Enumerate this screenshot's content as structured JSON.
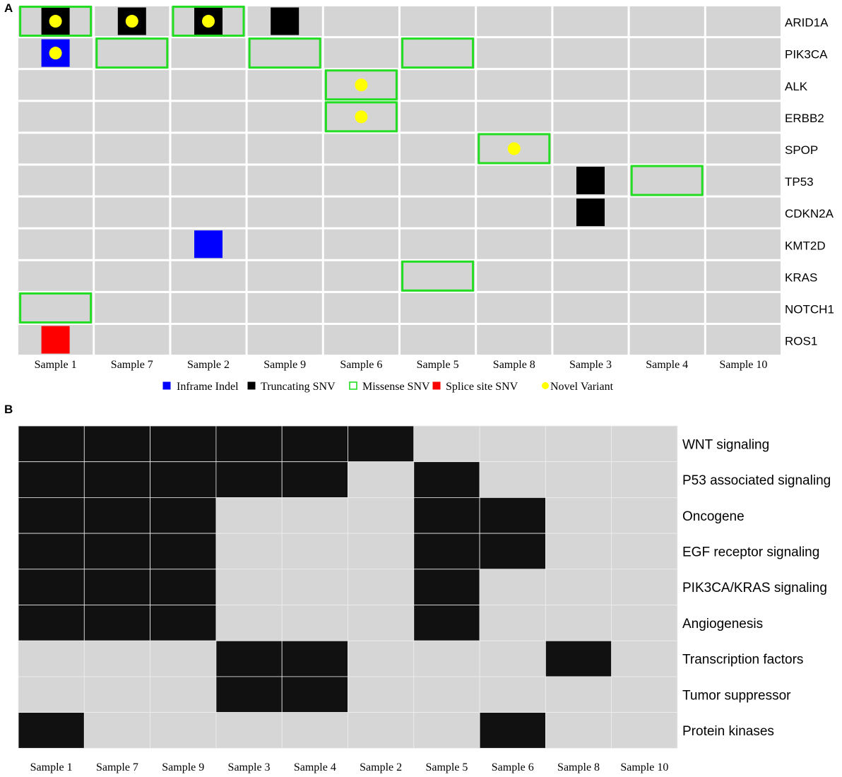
{
  "panel_a_label": "A",
  "panel_b_label": "B",
  "colors": {
    "background_cell": "#d4d4d4",
    "inframe_indel": "#0000ff",
    "truncating_snv": "#000000",
    "missense_snv": "#22dd22",
    "splice_site_snv": "#ff0000",
    "novel_variant": "#ffff00",
    "pathway_hit": "#111111",
    "pathway_empty": "#d6d6d6"
  },
  "legend": [
    {
      "key": "inframe_indel",
      "label": "Inframe Indel",
      "shape": "filled-square"
    },
    {
      "key": "truncating_snv",
      "label": "Truncating SNV",
      "shape": "filled-square"
    },
    {
      "key": "missense_snv",
      "label": "Missense SNV",
      "shape": "outline-square"
    },
    {
      "key": "splice_site_snv",
      "label": "Splice site SNV",
      "shape": "filled-square"
    },
    {
      "key": "novel_variant",
      "label": "Novel Variant",
      "shape": "dot"
    }
  ],
  "chart_data": [
    {
      "type": "heatmap",
      "panel": "A",
      "samples": [
        "Sample 1",
        "Sample 7",
        "Sample 2",
        "Sample 9",
        "Sample 6",
        "Sample 5",
        "Sample 8",
        "Sample 3",
        "Sample 4",
        "Sample 10"
      ],
      "genes": [
        "ARID1A",
        "PIK3CA",
        "ALK",
        "ERBB2",
        "SPOP",
        "TP53",
        "CDKN2A",
        "KMT2D",
        "KRAS",
        "NOTCH1",
        "ROS1"
      ],
      "mutations": [
        {
          "gene": "ARID1A",
          "sample": "Sample 1",
          "type": "truncating_snv",
          "missense": true,
          "novel": true
        },
        {
          "gene": "ARID1A",
          "sample": "Sample 7",
          "type": "truncating_snv",
          "missense": false,
          "novel": true
        },
        {
          "gene": "ARID1A",
          "sample": "Sample 2",
          "type": "truncating_snv",
          "missense": true,
          "novel": true
        },
        {
          "gene": "ARID1A",
          "sample": "Sample 9",
          "type": "truncating_snv",
          "missense": false,
          "novel": false
        },
        {
          "gene": "PIK3CA",
          "sample": "Sample 1",
          "type": "inframe_indel",
          "missense": false,
          "novel": true
        },
        {
          "gene": "PIK3CA",
          "sample": "Sample 7",
          "type": null,
          "missense": true,
          "novel": false
        },
        {
          "gene": "PIK3CA",
          "sample": "Sample 9",
          "type": null,
          "missense": true,
          "novel": false
        },
        {
          "gene": "PIK3CA",
          "sample": "Sample 5",
          "type": null,
          "missense": true,
          "novel": false
        },
        {
          "gene": "ALK",
          "sample": "Sample 6",
          "type": null,
          "missense": true,
          "novel": true
        },
        {
          "gene": "ERBB2",
          "sample": "Sample 6",
          "type": null,
          "missense": true,
          "novel": true
        },
        {
          "gene": "SPOP",
          "sample": "Sample 8",
          "type": null,
          "missense": true,
          "novel": true
        },
        {
          "gene": "TP53",
          "sample": "Sample 3",
          "type": "truncating_snv",
          "missense": false,
          "novel": false
        },
        {
          "gene": "TP53",
          "sample": "Sample 4",
          "type": null,
          "missense": true,
          "novel": false
        },
        {
          "gene": "CDKN2A",
          "sample": "Sample 3",
          "type": "truncating_snv",
          "missense": false,
          "novel": false
        },
        {
          "gene": "KMT2D",
          "sample": "Sample 2",
          "type": "inframe_indel",
          "missense": false,
          "novel": false
        },
        {
          "gene": "KRAS",
          "sample": "Sample 5",
          "type": null,
          "missense": true,
          "novel": false
        },
        {
          "gene": "NOTCH1",
          "sample": "Sample 1",
          "type": null,
          "missense": true,
          "novel": false
        },
        {
          "gene": "ROS1",
          "sample": "Sample 1",
          "type": "splice_site_snv",
          "missense": false,
          "novel": false
        }
      ]
    },
    {
      "type": "heatmap",
      "panel": "B",
      "samples": [
        "Sample 1",
        "Sample 7",
        "Sample 9",
        "Sample 3",
        "Sample 4",
        "Sample 2",
        "Sample 5",
        "Sample 6",
        "Sample 8",
        "Sample 10"
      ],
      "pathways": [
        "WNT signaling",
        "P53 associated signaling",
        "Oncogene",
        "EGF receptor signaling",
        "PIK3CA/KRAS signaling",
        "Angiogenesis",
        "Transcription factors",
        "Tumor suppressor",
        "Protein kinases"
      ],
      "matrix": [
        [
          1,
          1,
          1,
          1,
          1,
          1,
          0,
          0,
          0,
          0
        ],
        [
          1,
          1,
          1,
          1,
          1,
          0,
          1,
          0,
          0,
          0
        ],
        [
          1,
          1,
          1,
          0,
          0,
          0,
          1,
          1,
          0,
          0
        ],
        [
          1,
          1,
          1,
          0,
          0,
          0,
          1,
          1,
          0,
          0
        ],
        [
          1,
          1,
          1,
          0,
          0,
          0,
          1,
          0,
          0,
          0
        ],
        [
          1,
          1,
          1,
          0,
          0,
          0,
          1,
          0,
          0,
          0
        ],
        [
          0,
          0,
          0,
          1,
          1,
          0,
          0,
          0,
          1,
          0
        ],
        [
          0,
          0,
          0,
          1,
          1,
          0,
          0,
          0,
          0,
          0
        ],
        [
          1,
          0,
          0,
          0,
          0,
          0,
          0,
          1,
          0,
          0
        ]
      ]
    }
  ]
}
